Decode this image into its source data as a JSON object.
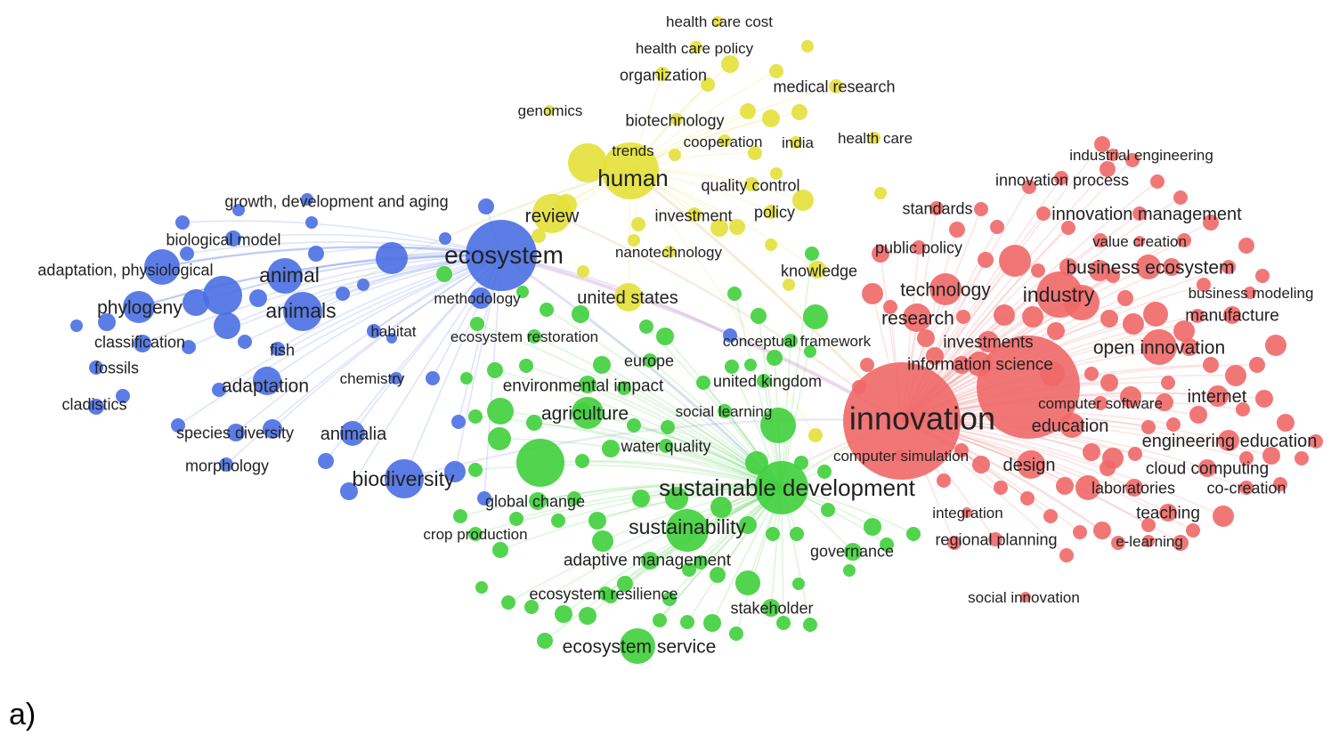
{
  "panel_label": "a)",
  "colors": {
    "blue": "#4a6fe3",
    "yellow": "#e3e03a",
    "green": "#3fcf3c",
    "red": "#f06868"
  },
  "clusters": {
    "blue": [
      "growth, development and aging",
      "biological model",
      "adaptation, physiological",
      "animal",
      "phylogeny",
      "animals",
      "classification",
      "fish",
      "fossils",
      "cladistics",
      "adaptation",
      "habitat",
      "chemistry",
      "ecosystem",
      "methodology",
      "species diversity",
      "animalia",
      "morphology",
      "biodiversity"
    ],
    "yellow": [
      "health care cost",
      "health care policy",
      "organization",
      "medical research",
      "genomics",
      "biotechnology",
      "cooperation",
      "india",
      "health care",
      "trends",
      "human",
      "quality control",
      "review",
      "investment",
      "policy",
      "nanotechnology",
      "knowledge",
      "united states"
    ],
    "green": [
      "ecosystem restoration",
      "conceptual framework",
      "europe",
      "environmental impact",
      "united kingdom",
      "agriculture",
      "social learning",
      "water quality",
      "sustainable development",
      "global change",
      "crop production",
      "sustainability",
      "adaptive management",
      "governance",
      "ecosystem resilience",
      "stakeholder",
      "ecosystem service"
    ],
    "red": [
      "industrial engineering",
      "innovation process",
      "standards",
      "innovation management",
      "public policy",
      "value creation",
      "business ecosystem",
      "technology",
      "industry",
      "business modeling",
      "research",
      "manufacture",
      "investments",
      "open innovation",
      "information science",
      "internet",
      "innovation",
      "computer software",
      "education",
      "engineering education",
      "computer simulation",
      "design",
      "cloud computing",
      "laboratories",
      "co-creation",
      "integration",
      "teaching",
      "regional planning",
      "e-learning",
      "social innovation"
    ]
  }
}
